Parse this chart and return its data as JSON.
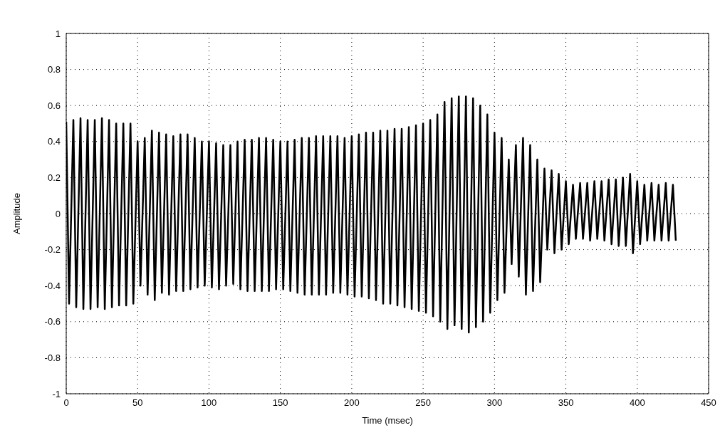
{
  "chart_data": {
    "type": "line",
    "xlabel": "Time (msec)",
    "ylabel": "Amplitude",
    "x": [
      0,
      2,
      5,
      7,
      10,
      12,
      15,
      17,
      20,
      22,
      25,
      27,
      30,
      32,
      35,
      37,
      40,
      42,
      45,
      47,
      50,
      52,
      55,
      57,
      60,
      62,
      65,
      67,
      70,
      72,
      75,
      77,
      80,
      82,
      85,
      87,
      90,
      92,
      95,
      97,
      100,
      102,
      105,
      107,
      110,
      112,
      115,
      117,
      120,
      122,
      125,
      127,
      130,
      132,
      135,
      137,
      140,
      142,
      145,
      147,
      150,
      152,
      155,
      157,
      160,
      162,
      165,
      167,
      170,
      172,
      175,
      177,
      180,
      182,
      185,
      187,
      190,
      192,
      195,
      197,
      200,
      202,
      205,
      207,
      210,
      212,
      215,
      217,
      220,
      222,
      225,
      227,
      230,
      232,
      235,
      237,
      240,
      242,
      245,
      247,
      250,
      252,
      255,
      257,
      260,
      262,
      265,
      267,
      270,
      272,
      275,
      277,
      280,
      282,
      285,
      287,
      290,
      292,
      295,
      297,
      300,
      302,
      305,
      307,
      310,
      312,
      315,
      317,
      320,
      322,
      325,
      327,
      330,
      332,
      335,
      337,
      340,
      342,
      345,
      347,
      350,
      352,
      355,
      357,
      360,
      362,
      365,
      367,
      370,
      372,
      375,
      377,
      380,
      382,
      385,
      387,
      390,
      392,
      395,
      397,
      400,
      402,
      405,
      407,
      410,
      412,
      415,
      417,
      420,
      422,
      425,
      427
    ],
    "series": [
      {
        "color": "#000000",
        "values": [
          0.51,
          -0.5,
          0.52,
          -0.52,
          0.53,
          -0.53,
          0.52,
          -0.53,
          0.52,
          -0.52,
          0.53,
          -0.53,
          0.52,
          -0.52,
          0.5,
          -0.51,
          0.5,
          -0.51,
          0.5,
          -0.5,
          0.4,
          -0.4,
          0.42,
          -0.45,
          0.46,
          -0.48,
          0.45,
          -0.44,
          0.44,
          -0.45,
          0.43,
          -0.43,
          0.44,
          -0.43,
          0.44,
          -0.42,
          0.42,
          -0.41,
          0.4,
          -0.4,
          0.4,
          -0.41,
          0.39,
          -0.42,
          0.38,
          -0.4,
          0.38,
          -0.39,
          0.4,
          -0.42,
          0.41,
          -0.43,
          0.41,
          -0.43,
          0.42,
          -0.43,
          0.42,
          -0.43,
          0.41,
          -0.42,
          0.4,
          -0.42,
          0.4,
          -0.43,
          0.41,
          -0.44,
          0.42,
          -0.45,
          0.42,
          -0.45,
          0.43,
          -0.45,
          0.43,
          -0.45,
          0.43,
          -0.44,
          0.43,
          -0.44,
          0.42,
          -0.45,
          0.43,
          -0.46,
          0.44,
          -0.46,
          0.45,
          -0.47,
          0.45,
          -0.48,
          0.46,
          -0.5,
          0.46,
          -0.5,
          0.47,
          -0.51,
          0.47,
          -0.52,
          0.48,
          -0.53,
          0.49,
          -0.54,
          0.5,
          -0.55,
          0.52,
          -0.57,
          0.55,
          -0.6,
          0.62,
          -0.64,
          0.64,
          -0.62,
          0.65,
          -0.64,
          0.65,
          -0.66,
          0.64,
          -0.63,
          0.6,
          -0.6,
          0.55,
          -0.55,
          0.45,
          -0.48,
          0.42,
          -0.44,
          0.3,
          -0.28,
          0.38,
          -0.35,
          0.42,
          -0.45,
          0.38,
          -0.43,
          0.3,
          -0.38,
          0.25,
          -0.2,
          0.24,
          -0.22,
          0.22,
          -0.2,
          0.18,
          -0.17,
          0.16,
          -0.14,
          0.17,
          -0.14,
          0.17,
          -0.15,
          0.18,
          -0.14,
          0.18,
          -0.15,
          0.19,
          -0.17,
          0.19,
          -0.18,
          0.2,
          -0.18,
          0.22,
          -0.22,
          0.18,
          -0.17,
          0.16,
          -0.15,
          0.17,
          -0.15,
          0.16,
          -0.15,
          0.17,
          -0.15,
          0.16,
          -0.15
        ]
      }
    ],
    "xlim": [
      0,
      450
    ],
    "xticks": [
      0,
      50,
      100,
      150,
      200,
      250,
      300,
      350,
      400,
      450
    ],
    "ylim": [
      -1,
      1
    ],
    "yticks": [
      -1,
      -0.8,
      -0.6,
      -0.4,
      -0.2,
      0,
      0.2,
      0.4,
      0.6,
      0.8,
      1
    ],
    "grid": true,
    "line_style": "solid"
  }
}
